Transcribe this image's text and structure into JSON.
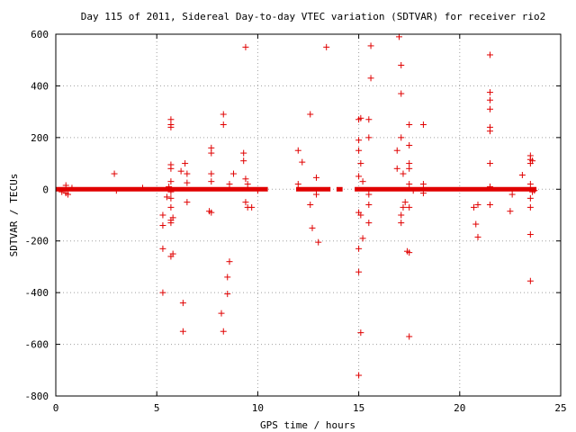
{
  "chart_data": {
    "type": "scatter",
    "title": "Day 115 of 2011, Sidereal Day-to-day VTEC variation (SDTVAR) for receiver rio2",
    "xlabel": "GPS time / hours",
    "ylabel": "SDTVAR / TECUs",
    "xlim": [
      0,
      25
    ],
    "ylim": [
      -800,
      600
    ],
    "xticks": [
      0,
      5,
      10,
      15,
      20,
      25
    ],
    "yticks": [
      -800,
      -600,
      -400,
      -200,
      0,
      200,
      400,
      600
    ],
    "grid": true,
    "marker": "plus",
    "color": "#e00000",
    "dense_segments": [
      {
        "x0": 0.0,
        "x1": 10.5,
        "y": 0
      },
      {
        "x0": 11.9,
        "x1": 13.6,
        "y": 0
      },
      {
        "x0": 13.9,
        "x1": 14.2,
        "y": 0
      },
      {
        "x0": 14.8,
        "x1": 23.8,
        "y": 0
      }
    ],
    "series": [
      {
        "points": [
          [
            0.3,
            -10
          ],
          [
            0.5,
            15
          ],
          [
            0.5,
            -15
          ],
          [
            0.6,
            -20
          ],
          [
            0.8,
            5
          ],
          [
            2.9,
            60
          ],
          [
            3.0,
            -5
          ],
          [
            4.3,
            5
          ],
          [
            5.3,
            -100
          ],
          [
            5.3,
            -140
          ],
          [
            5.3,
            -230
          ],
          [
            5.3,
            -400
          ],
          [
            5.5,
            -30
          ],
          [
            5.6,
            10
          ],
          [
            5.7,
            270
          ],
          [
            5.7,
            250
          ],
          [
            5.7,
            240
          ],
          [
            5.7,
            95
          ],
          [
            5.7,
            80
          ],
          [
            5.7,
            30
          ],
          [
            5.7,
            -10
          ],
          [
            5.7,
            -35
          ],
          [
            5.7,
            -70
          ],
          [
            5.7,
            -120
          ],
          [
            5.7,
            -130
          ],
          [
            5.7,
            -260
          ],
          [
            5.8,
            -250
          ],
          [
            5.8,
            -110
          ],
          [
            6.2,
            70
          ],
          [
            6.3,
            -440
          ],
          [
            6.3,
            -550
          ],
          [
            6.4,
            100
          ],
          [
            6.5,
            60
          ],
          [
            6.5,
            25
          ],
          [
            6.5,
            -50
          ],
          [
            7.6,
            -85
          ],
          [
            7.7,
            -90
          ],
          [
            7.7,
            160
          ],
          [
            7.7,
            140
          ],
          [
            7.7,
            60
          ],
          [
            7.7,
            30
          ],
          [
            8.2,
            -480
          ],
          [
            8.3,
            290
          ],
          [
            8.3,
            250
          ],
          [
            8.3,
            -550
          ],
          [
            8.5,
            -340
          ],
          [
            8.5,
            -405
          ],
          [
            8.6,
            -280
          ],
          [
            8.6,
            20
          ],
          [
            8.8,
            60
          ],
          [
            9.3,
            140
          ],
          [
            9.3,
            110
          ],
          [
            9.4,
            550
          ],
          [
            9.4,
            40
          ],
          [
            9.4,
            -50
          ],
          [
            9.5,
            20
          ],
          [
            9.5,
            -70
          ],
          [
            9.7,
            -70
          ],
          [
            10.0,
            -5
          ],
          [
            12.0,
            150
          ],
          [
            12.0,
            20
          ],
          [
            12.2,
            105
          ],
          [
            12.6,
            290
          ],
          [
            12.6,
            -60
          ],
          [
            12.7,
            -150
          ],
          [
            12.9,
            45
          ],
          [
            12.9,
            -20
          ],
          [
            13.0,
            -205
          ],
          [
            13.4,
            550
          ],
          [
            15.0,
            270
          ],
          [
            15.0,
            190
          ],
          [
            15.0,
            150
          ],
          [
            15.0,
            50
          ],
          [
            15.0,
            -90
          ],
          [
            15.0,
            -230
          ],
          [
            15.0,
            -320
          ],
          [
            15.0,
            -720
          ],
          [
            15.1,
            -555
          ],
          [
            15.1,
            275
          ],
          [
            15.1,
            100
          ],
          [
            15.1,
            -100
          ],
          [
            15.2,
            -190
          ],
          [
            15.2,
            30
          ],
          [
            15.5,
            270
          ],
          [
            15.5,
            200
          ],
          [
            15.5,
            -60
          ],
          [
            15.5,
            -130
          ],
          [
            15.5,
            -20
          ],
          [
            15.6,
            555
          ],
          [
            15.6,
            430
          ],
          [
            16.9,
            150
          ],
          [
            16.9,
            80
          ],
          [
            17.0,
            590
          ],
          [
            17.1,
            480
          ],
          [
            17.1,
            370
          ],
          [
            17.1,
            200
          ],
          [
            17.1,
            -100
          ],
          [
            17.1,
            -130
          ],
          [
            17.2,
            -70
          ],
          [
            17.2,
            60
          ],
          [
            17.3,
            -50
          ],
          [
            17.4,
            -240
          ],
          [
            17.5,
            -245
          ],
          [
            17.5,
            -570
          ],
          [
            17.5,
            250
          ],
          [
            17.5,
            170
          ],
          [
            17.5,
            100
          ],
          [
            17.5,
            80
          ],
          [
            17.5,
            20
          ],
          [
            17.5,
            -70
          ],
          [
            17.7,
            -5
          ],
          [
            18.2,
            250
          ],
          [
            18.2,
            20
          ],
          [
            18.2,
            -15
          ],
          [
            20.7,
            -70
          ],
          [
            20.8,
            -135
          ],
          [
            20.9,
            -60
          ],
          [
            20.9,
            -185
          ],
          [
            21.5,
            520
          ],
          [
            21.5,
            375
          ],
          [
            21.5,
            345
          ],
          [
            21.5,
            310
          ],
          [
            21.5,
            240
          ],
          [
            21.5,
            225
          ],
          [
            21.5,
            100
          ],
          [
            21.5,
            -60
          ],
          [
            21.5,
            10
          ],
          [
            22.5,
            -85
          ],
          [
            22.6,
            -20
          ],
          [
            23.1,
            55
          ],
          [
            23.5,
            130
          ],
          [
            23.5,
            115
          ],
          [
            23.5,
            100
          ],
          [
            23.5,
            20
          ],
          [
            23.5,
            -35
          ],
          [
            23.5,
            -70
          ],
          [
            23.5,
            -175
          ],
          [
            23.5,
            -355
          ],
          [
            23.6,
            110
          ],
          [
            23.6,
            -10
          ],
          [
            23.7,
            -5
          ]
        ]
      }
    ]
  }
}
